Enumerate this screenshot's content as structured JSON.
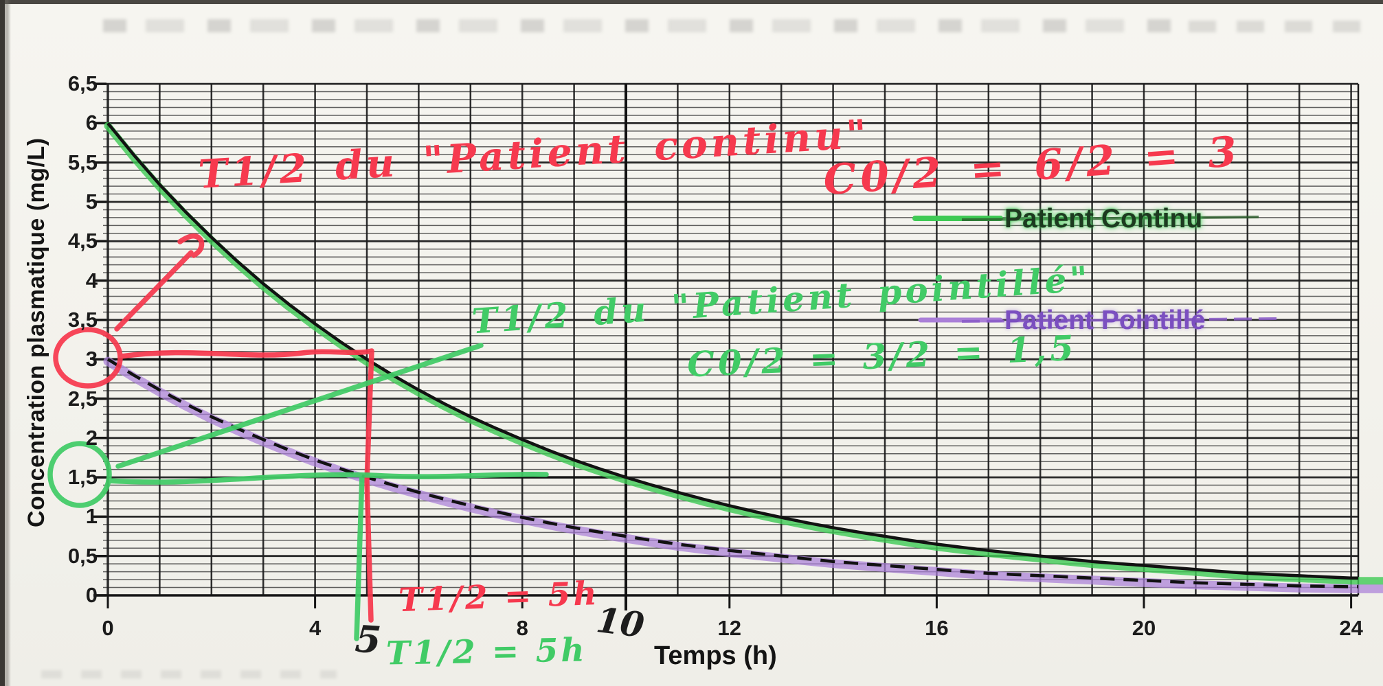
{
  "document": {
    "kind": "scanned pharmacokinetics graph with handwritten corrections",
    "language": "fr"
  },
  "colors": {
    "annotation_red": "#f6394e",
    "annotation_green": "#41cb66",
    "marker_green": "#3fca55",
    "marker_purple": "#aa7fd8",
    "print_black": "#141414",
    "legend_continu_text": "#1d3a20",
    "legend_pointille_text": "#7b4fc0",
    "paper": "#f3f2ec"
  },
  "chart_data": {
    "type": "line",
    "title": "",
    "xlabel": "Temps (h)",
    "ylabel": "Concentration plasmatique (mg/L)",
    "xlim": [
      0,
      24
    ],
    "ylim": [
      0,
      6.5
    ],
    "grid": {
      "on": true,
      "minor_y_step": 0.1,
      "major_y_step": 0.5,
      "x_step": 1
    },
    "x_ticks": [
      0,
      4,
      8,
      12,
      16,
      20,
      24
    ],
    "y_tick_labels": [
      "0",
      "0,5",
      "1",
      "1,5",
      "2",
      "2,5",
      "3",
      "3,5",
      "4",
      "4,5",
      "5",
      "5,5",
      "6",
      "6,5"
    ],
    "legend": {
      "position": "upper-right-inside",
      "entries": [
        {
          "label": "Patient Continu",
          "swatch_color": "#3fca55"
        },
        {
          "label": "Patient Pointillé",
          "swatch_color": "#8a5bc8"
        }
      ]
    },
    "x": [
      0,
      1,
      2,
      3,
      4,
      5,
      6,
      7,
      8,
      9,
      10,
      11,
      12,
      13,
      14,
      15,
      16,
      17,
      18,
      19,
      20,
      21,
      22,
      23,
      24
    ],
    "series": [
      {
        "name": "Patient Continu",
        "style": "solid",
        "print_color": "#121212",
        "marker_highlight": "#3fca55",
        "C0_mg_L": 6,
        "half_life_h": 5,
        "values": [
          6,
          5.22,
          4.55,
          3.96,
          3.45,
          3,
          2.61,
          2.27,
          1.98,
          1.72,
          1.5,
          1.31,
          1.14,
          0.99,
          0.86,
          0.75,
          0.65,
          0.57,
          0.5,
          0.43,
          0.38,
          0.33,
          0.28,
          0.25,
          0.22
        ]
      },
      {
        "name": "Patient Pointillé",
        "style": "dashed",
        "print_color": "#121212",
        "marker_highlight": "#aa7fd8",
        "C0_mg_L": 3,
        "half_life_h": 5,
        "values": [
          3,
          2.61,
          2.27,
          1.98,
          1.72,
          1.5,
          1.31,
          1.14,
          0.99,
          0.86,
          0.75,
          0.65,
          0.57,
          0.5,
          0.43,
          0.38,
          0.33,
          0.28,
          0.25,
          0.22,
          0.19,
          0.16,
          0.14,
          0.12,
          0.11
        ]
      }
    ],
    "construction_lines": [
      {
        "kind": "horizontal",
        "y": 3,
        "x1": 0,
        "x2": 5
      },
      {
        "kind": "horizontal",
        "y": 1.5,
        "x1": 5,
        "x2": 10
      },
      {
        "kind": "vertical",
        "x": 10,
        "y1": 0,
        "y2": 6.5
      }
    ]
  },
  "annotations": {
    "red": {
      "title": "T1/2 du \"Patient continu\"",
      "calc": "C0/2 = 6/2 = 3",
      "half_life": "T1/2 = 5h",
      "circled_y_value": "3"
    },
    "green": {
      "title": "T1/2 du \"Patient pointillé\"",
      "calc": "C0/2 = 3/2 = 1,5",
      "half_life": "T1/2 = 5h",
      "circled_y_value": "1,5"
    },
    "handwritten_time_marks": {
      "five": "5",
      "ten": "10"
    }
  }
}
